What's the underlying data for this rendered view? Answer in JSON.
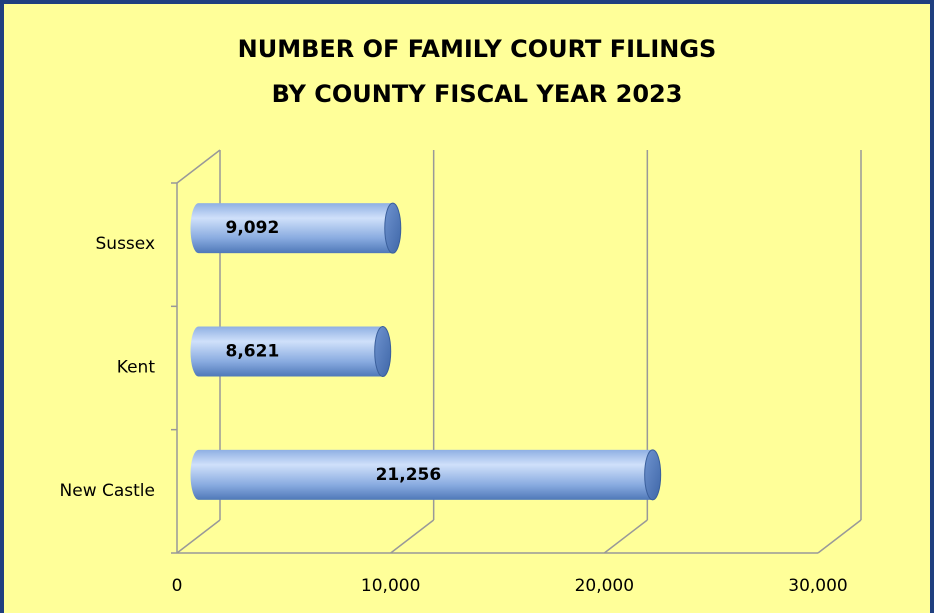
{
  "chart_data": {
    "type": "bar",
    "orientation": "horizontal",
    "title": [
      "NUMBER OF FAMILY COURT FILINGS",
      "BY COUNTY FISCAL YEAR 2023"
    ],
    "categories": [
      "Sussex",
      "Kent",
      "New Castle"
    ],
    "values": [
      9092,
      8621,
      21256
    ],
    "value_labels": [
      "9,092",
      "8,621",
      "21,256"
    ],
    "color": "#6f97d6",
    "xlim": [
      0,
      30000
    ],
    "xticks": [
      0,
      {
        "value": 10000,
        "label": "10,000"
      },
      {
        "value": 20000,
        "label": "20,000"
      },
      {
        "value": 30000,
        "label": "30,000"
      }
    ],
    "grid": true
  }
}
